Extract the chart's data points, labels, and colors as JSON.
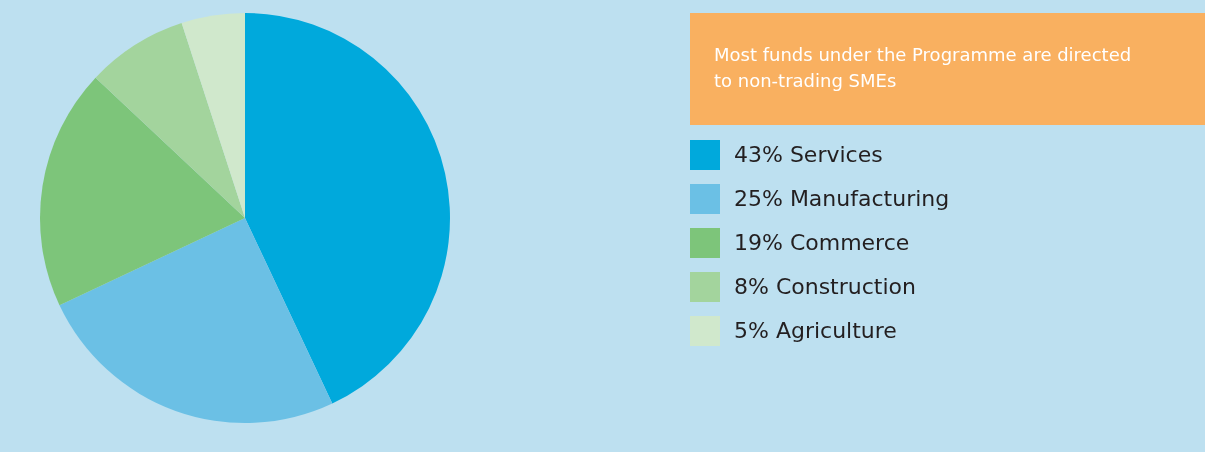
{
  "chart_data": {
    "type": "pie",
    "title": "Most funds under the Programme are directed to non-trading SMEs",
    "categories": [
      "Services",
      "Manufacturing",
      "Commerce",
      "Construction",
      "Agriculture"
    ],
    "values": [
      43,
      25,
      19,
      8,
      5
    ],
    "colors": [
      "#00a9dc",
      "#6bc0e5",
      "#7dc57a",
      "#a3d49d",
      "#d0e8cc"
    ],
    "value_labels": [
      "43%",
      "25%",
      "19%",
      "8%",
      "5%"
    ],
    "legend": "right"
  }
}
